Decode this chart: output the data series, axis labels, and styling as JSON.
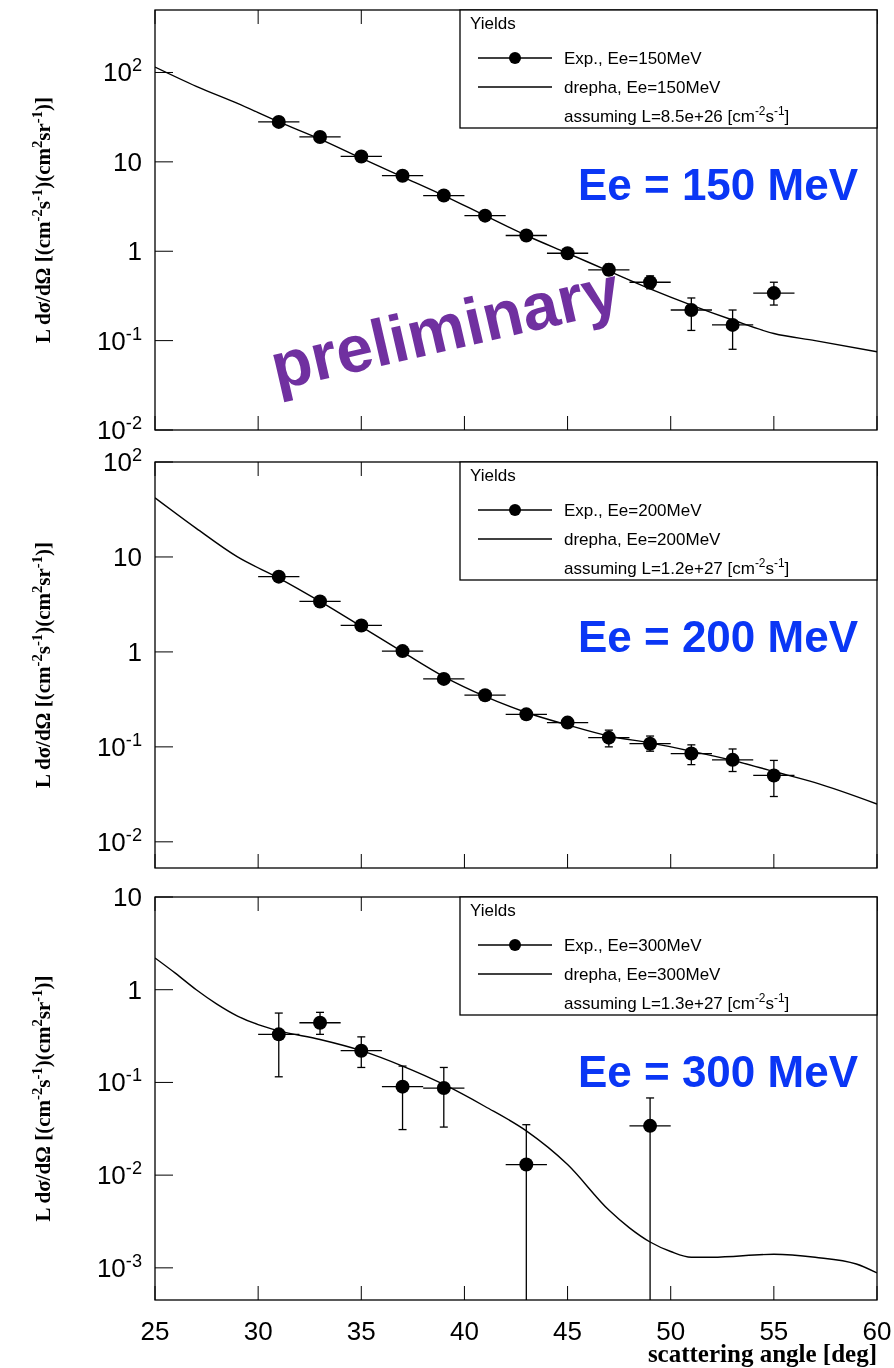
{
  "chart_data": [
    {
      "type": "scatter",
      "legend_title": "Yields",
      "ylabel": "L dσ/dΩ [(cm$^{-2}$s$^{-1}$)(cm$^{2}$sr$^{-1}$)]",
      "annotations": [
        "assuming L=8.5e+26 [cm$^{-2}$s$^{-1}$]",
        "Ee = 150 MeV",
        "preliminary"
      ],
      "xlim": [
        25,
        60
      ],
      "xticks": [
        25,
        30,
        35,
        40,
        45,
        50,
        55,
        60
      ],
      "ylim": [
        0.01,
        500
      ],
      "yticks": [
        {
          "value": 100,
          "label": "10$^{2}$"
        },
        {
          "value": 10,
          "label": "10"
        },
        {
          "value": 1,
          "label": "1"
        },
        {
          "value": 0.1,
          "label": "10$^{-1}$"
        },
        {
          "value": 0.01,
          "label": "10$^{-2}$"
        }
      ],
      "log": "y",
      "tick_labels": "y",
      "legend": "top right",
      "grid": false,
      "series": [
        {
          "name": "Exp., Ee=150MeV",
          "marker": "circle",
          "color": "#000000",
          "x": [
            31,
            33,
            35,
            37,
            39,
            41,
            43,
            45,
            47,
            49,
            51,
            53,
            55
          ],
          "values": [
            28,
            19,
            11.5,
            7,
            4.2,
            2.5,
            1.5,
            0.95,
            0.62,
            0.45,
            0.22,
            0.15,
            0.34
          ],
          "errors": [
            [
              25,
              31
            ],
            [
              17,
              21
            ],
            [
              10.5,
              12.5
            ],
            [
              6.4,
              7.6
            ],
            [
              3.8,
              4.6
            ],
            [
              2.3,
              2.7
            ],
            [
              1.38,
              1.62
            ],
            [
              0.87,
              1.03
            ],
            [
              0.54,
              0.72
            ],
            [
              0.38,
              0.53
            ],
            [
              0.13,
              0.3
            ],
            [
              0.08,
              0.22
            ],
            [
              0.25,
              0.45
            ]
          ],
          "xerrors": [
            1,
            1,
            1,
            1,
            1,
            1,
            1,
            1,
            1,
            1,
            1,
            1,
            1
          ]
        },
        {
          "name": "drepha, Ee=150MeV",
          "type": "line",
          "marker": "none",
          "line_style": "solid",
          "color": "#000000",
          "x": [
            25,
            27,
            29,
            31,
            33,
            35,
            37,
            39,
            41,
            43,
            45,
            47,
            49,
            51,
            53,
            55,
            57,
            60
          ],
          "values": [
            115,
            70,
            45,
            28,
            18,
            11,
            6.8,
            4.2,
            2.5,
            1.5,
            0.95,
            0.6,
            0.38,
            0.25,
            0.17,
            0.12,
            0.1,
            0.075
          ]
        }
      ]
    },
    {
      "type": "scatter",
      "legend_title": "Yields",
      "ylabel": "L dσ/dΩ [(cm$^{-2}$s$^{-1}$)(cm$^{2}$sr$^{-1}$)]",
      "annotations": [
        "assuming L=1.2e+27 [cm$^{-2}$s$^{-1}$]",
        "Ee = 200 MeV"
      ],
      "xlim": [
        25,
        60
      ],
      "xticks": [
        25,
        30,
        35,
        40,
        45,
        50,
        55,
        60
      ],
      "ylim": [
        0.0053,
        100
      ],
      "yticks": [
        {
          "value": 100,
          "label": "10$^{2}$"
        },
        {
          "value": 10,
          "label": "10"
        },
        {
          "value": 1,
          "label": "1"
        },
        {
          "value": 0.1,
          "label": "10$^{-1}$"
        },
        {
          "value": 0.01,
          "label": "10$^{-2}$"
        }
      ],
      "log": "y",
      "tick_labels": "y",
      "legend": "top right",
      "grid": false,
      "series": [
        {
          "name": "Exp., Ee=200MeV",
          "marker": "circle",
          "color": "#000000",
          "x": [
            31,
            33,
            35,
            37,
            39,
            41,
            43,
            45,
            47,
            49,
            51,
            53,
            55
          ],
          "values": [
            6.2,
            3.4,
            1.9,
            1.02,
            0.52,
            0.35,
            0.22,
            0.18,
            0.125,
            0.108,
            0.085,
            0.073,
            0.05
          ],
          "errors": [
            [
              5.7,
              6.7
            ],
            [
              3.1,
              3.7
            ],
            [
              1.75,
              2.05
            ],
            [
              0.94,
              1.1
            ],
            [
              0.47,
              0.57
            ],
            [
              0.32,
              0.38
            ],
            [
              0.2,
              0.24
            ],
            [
              0.16,
              0.2
            ],
            [
              0.1,
              0.15
            ],
            [
              0.09,
              0.13
            ],
            [
              0.065,
              0.105
            ],
            [
              0.055,
              0.095
            ],
            [
              0.03,
              0.072
            ]
          ],
          "xerrors": [
            1,
            1,
            1,
            1,
            1,
            1,
            1,
            1,
            1,
            1,
            1,
            1,
            1
          ]
        },
        {
          "name": "drepha, Ee=200MeV",
          "type": "line",
          "marker": "none",
          "line_style": "solid",
          "color": "#000000",
          "x": [
            25,
            27,
            29,
            31,
            33,
            35,
            37,
            39,
            41,
            43,
            45,
            47,
            49,
            51,
            53,
            55,
            57,
            60
          ],
          "values": [
            42,
            20,
            10,
            6,
            3.4,
            1.85,
            1.0,
            0.55,
            0.34,
            0.23,
            0.17,
            0.13,
            0.11,
            0.09,
            0.072,
            0.055,
            0.042,
            0.025
          ]
        }
      ]
    },
    {
      "type": "scatter",
      "legend_title": "Yields",
      "xlabel": "scattering angle [deg]",
      "ylabel": "L dσ/dΩ [(cm$^{-2}$s$^{-1}$)(cm$^{2}$sr$^{-1}$)]",
      "annotations": [
        "assuming L=1.3e+27 [cm$^{-2}$s$^{-1}$]",
        "Ee = 300 MeV"
      ],
      "xlim": [
        25,
        60
      ],
      "xticks": [
        25,
        30,
        35,
        40,
        45,
        50,
        55,
        60
      ],
      "ylim": [
        0.00045,
        10
      ],
      "yticks": [
        {
          "value": 10,
          "label": "10"
        },
        {
          "value": 1,
          "label": "1"
        },
        {
          "value": 0.1,
          "label": "10$^{-1}$"
        },
        {
          "value": 0.01,
          "label": "10$^{-2}$"
        },
        {
          "value": 0.001,
          "label": "10$^{-3}$"
        }
      ],
      "log": "y",
      "legend": "top right",
      "grid": false,
      "series": [
        {
          "name": "Exp., Ee=300MeV",
          "marker": "circle",
          "color": "#000000",
          "x": [
            31,
            33,
            35,
            37,
            39,
            43,
            49
          ],
          "values": [
            0.33,
            0.44,
            0.22,
            0.09,
            0.087,
            0.013,
            0.034
          ],
          "errors": [
            [
              0.115,
              0.56
            ],
            [
              0.33,
              0.57
            ],
            [
              0.145,
              0.31
            ],
            [
              0.031,
              0.15
            ],
            [
              0.033,
              0.145
            ],
            [
              0.00045,
              0.035
            ],
            [
              0.00045,
              0.068
            ]
          ],
          "xerrors": [
            1,
            1,
            1,
            1,
            1,
            1,
            1
          ]
        },
        {
          "name": "drepha, Ee=300MeV",
          "type": "line",
          "marker": "none",
          "line_style": "solid",
          "color": "#000000",
          "x": [
            25,
            26,
            27,
            28,
            29,
            30,
            31,
            33,
            35,
            37,
            39,
            41,
            43,
            45,
            47,
            48,
            49,
            50,
            51,
            52,
            55,
            57,
            59,
            60
          ],
          "values": [
            2.2,
            1.5,
            1.0,
            0.7,
            0.52,
            0.42,
            0.36,
            0.29,
            0.22,
            0.15,
            0.095,
            0.055,
            0.03,
            0.013,
            0.0042,
            0.0027,
            0.0019,
            0.0015,
            0.0013,
            0.0013,
            0.0014,
            0.0013,
            0.0011,
            0.00088
          ]
        }
      ]
    }
  ]
}
